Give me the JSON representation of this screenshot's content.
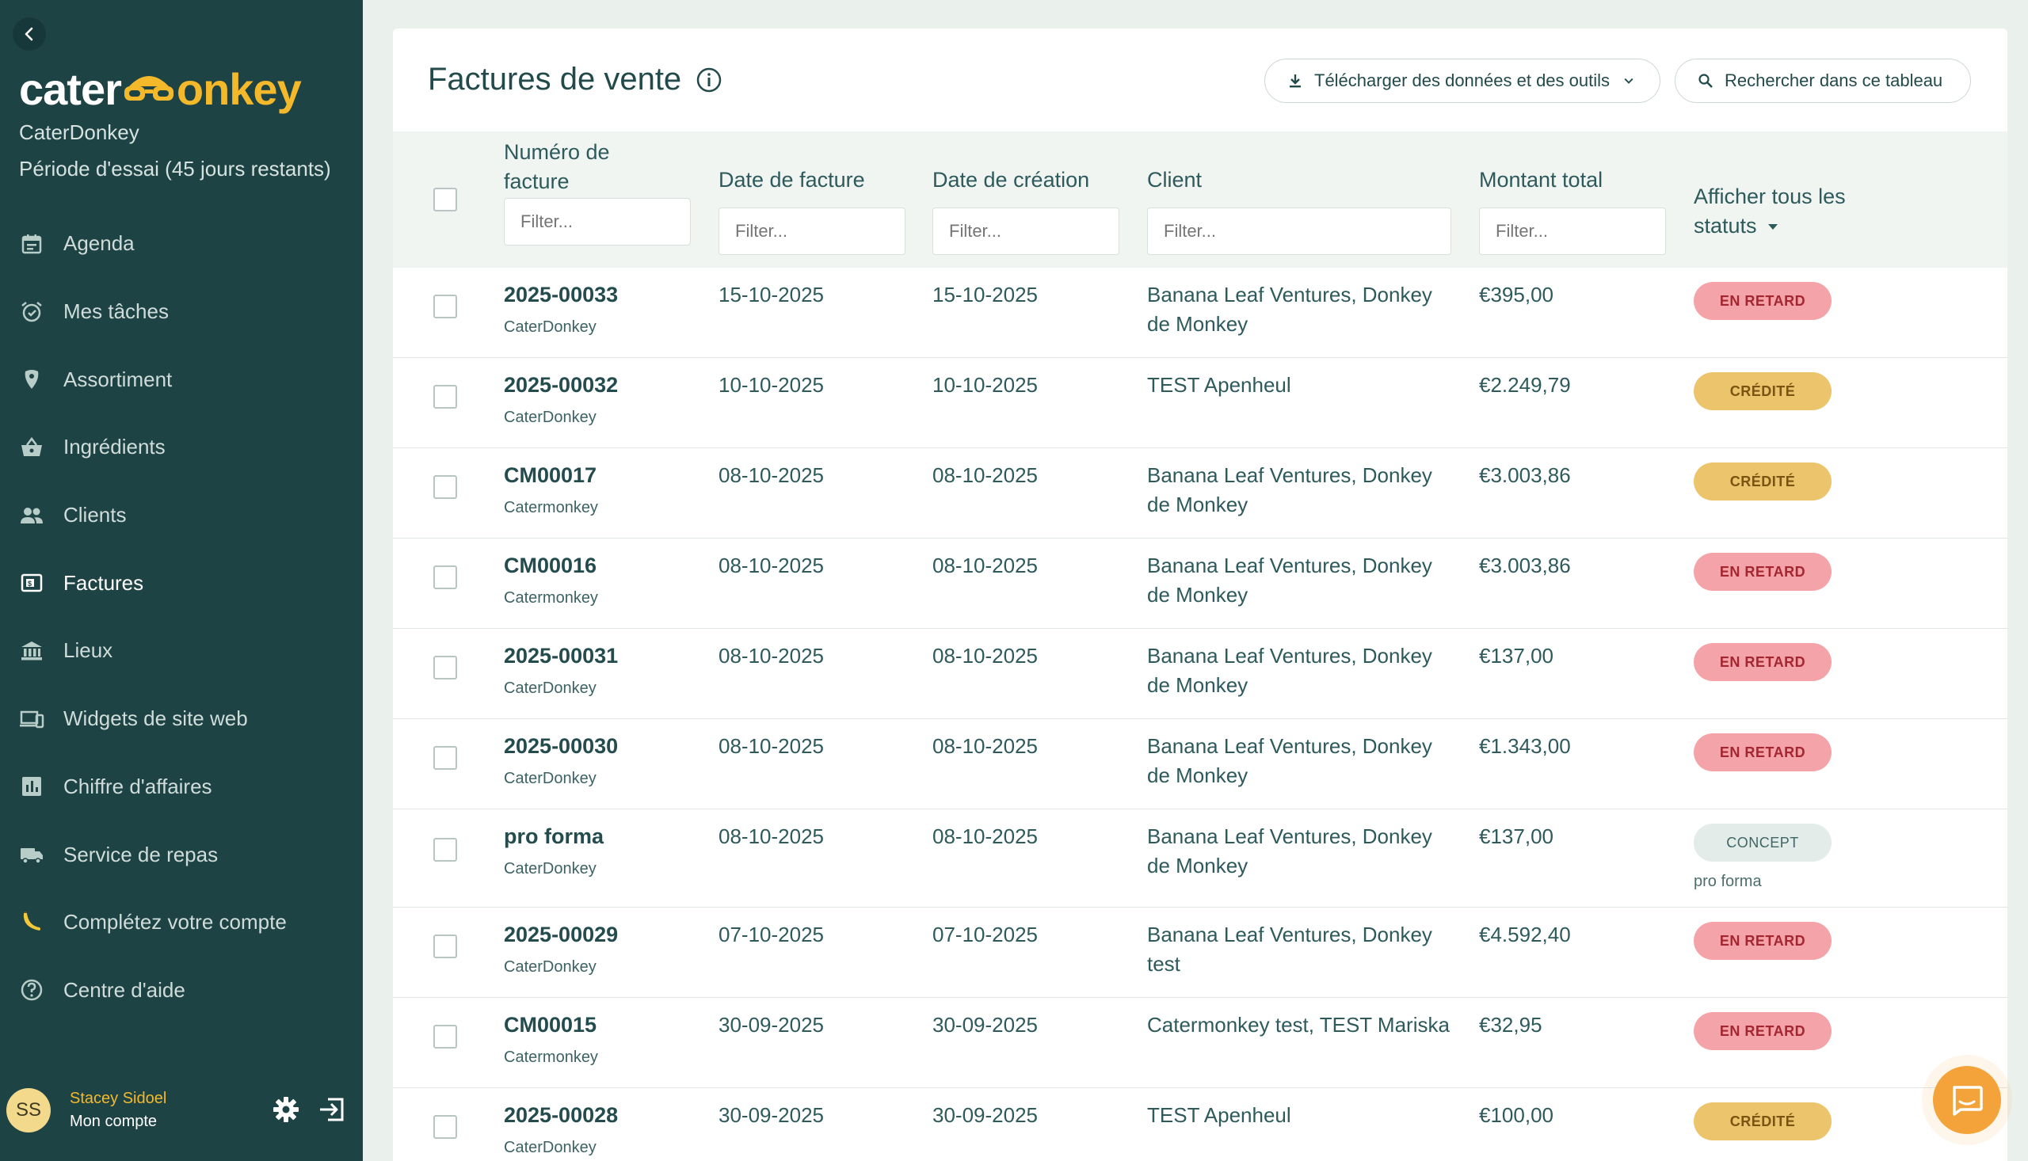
{
  "sidebar": {
    "logo": {
      "part1": "cater",
      "part2": "onkey"
    },
    "org_name": "CaterDonkey",
    "trial": "Période d'essai (45 jours restants)",
    "items": [
      {
        "label": "Agenda",
        "icon": "calendar-icon"
      },
      {
        "label": "Mes tâches",
        "icon": "alarm-clock-icon"
      },
      {
        "label": "Assortiment",
        "icon": "carrot-icon"
      },
      {
        "label": "Ingrédients",
        "icon": "basket-icon"
      },
      {
        "label": "Clients",
        "icon": "people-icon"
      },
      {
        "label": "Factures",
        "icon": "invoice-icon"
      },
      {
        "label": "Lieux",
        "icon": "building-icon"
      },
      {
        "label": "Widgets de site web",
        "icon": "devices-icon"
      },
      {
        "label": "Chiffre d'affaires",
        "icon": "bar-chart-icon"
      },
      {
        "label": "Service de repas",
        "icon": "truck-icon"
      },
      {
        "label": "Complétez votre compte",
        "icon": "banana-icon"
      },
      {
        "label": "Centre d'aide",
        "icon": "help-circle-icon"
      }
    ],
    "active_item": "Factures",
    "user": {
      "initials": "SS",
      "name": "Stacey Sidoel",
      "account_label": "Mon compte"
    }
  },
  "header": {
    "title": "Factures de vente",
    "download_label": "Télécharger des données et des outils",
    "search_label": "Rechercher dans ce tableau"
  },
  "table": {
    "columns": {
      "number": "Numéro de facture",
      "invoice_date": "Date de facture",
      "created": "Date de création",
      "client": "Client",
      "total": "Montant total",
      "status": "Afficher tous les statuts"
    },
    "filter_placeholder": "Filter...",
    "rows": [
      {
        "number": "2025-00033",
        "company": "CaterDonkey",
        "invoice_date": "15-10-2025",
        "created": "15-10-2025",
        "client": "Banana Leaf Ventures, Donkey de Monkey",
        "total": "€395,00",
        "status": "EN RETARD",
        "status_type": "late",
        "note": ""
      },
      {
        "number": "2025-00032",
        "company": "CaterDonkey",
        "invoice_date": "10-10-2025",
        "created": "10-10-2025",
        "client": "TEST Apenheul",
        "total": "€2.249,79",
        "status": "CRÉDITÉ",
        "status_type": "credit",
        "note": ""
      },
      {
        "number": "CM00017",
        "company": "Catermonkey",
        "invoice_date": "08-10-2025",
        "created": "08-10-2025",
        "client": "Banana Leaf Ventures, Donkey de Monkey",
        "total": "€3.003,86",
        "status": "CRÉDITÉ",
        "status_type": "credit",
        "note": ""
      },
      {
        "number": "CM00016",
        "company": "Catermonkey",
        "invoice_date": "08-10-2025",
        "created": "08-10-2025",
        "client": "Banana Leaf Ventures, Donkey de Monkey",
        "total": "€3.003,86",
        "status": "EN RETARD",
        "status_type": "late",
        "note": ""
      },
      {
        "number": "2025-00031",
        "company": "CaterDonkey",
        "invoice_date": "08-10-2025",
        "created": "08-10-2025",
        "client": "Banana Leaf Ventures, Donkey de Monkey",
        "total": "€137,00",
        "status": "EN RETARD",
        "status_type": "late",
        "note": ""
      },
      {
        "number": "2025-00030",
        "company": "CaterDonkey",
        "invoice_date": "08-10-2025",
        "created": "08-10-2025",
        "client": "Banana Leaf Ventures, Donkey de Monkey",
        "total": "€1.343,00",
        "status": "EN RETARD",
        "status_type": "late",
        "note": ""
      },
      {
        "number": "pro forma",
        "company": "CaterDonkey",
        "invoice_date": "08-10-2025",
        "created": "08-10-2025",
        "client": "Banana Leaf Ventures, Donkey de Monkey",
        "total": "€137,00",
        "status": "CONCEPT",
        "status_type": "concept",
        "note": "pro forma"
      },
      {
        "number": "2025-00029",
        "company": "CaterDonkey",
        "invoice_date": "07-10-2025",
        "created": "07-10-2025",
        "client": "Banana Leaf Ventures, Donkey test",
        "total": "€4.592,40",
        "status": "EN RETARD",
        "status_type": "late",
        "note": ""
      },
      {
        "number": "CM00015",
        "company": "Catermonkey",
        "invoice_date": "30-09-2025",
        "created": "30-09-2025",
        "client": "Catermonkey test, TEST Mariska",
        "total": "€32,95",
        "status": "EN RETARD",
        "status_type": "late",
        "note": ""
      },
      {
        "number": "2025-00028",
        "company": "CaterDonkey",
        "invoice_date": "30-09-2025",
        "created": "30-09-2025",
        "client": "TEST Apenheul",
        "total": "€100,00",
        "status": "CRÉDITÉ",
        "status_type": "credit",
        "note": ""
      }
    ]
  },
  "colors": {
    "sidebar_bg": "#1e4345",
    "accent_yellow": "#f3b92b",
    "late_badge": "#f4a3a8",
    "credit_badge": "#ecc46c",
    "concept_badge": "#e3ece8",
    "chat_button": "#f3a33a"
  }
}
